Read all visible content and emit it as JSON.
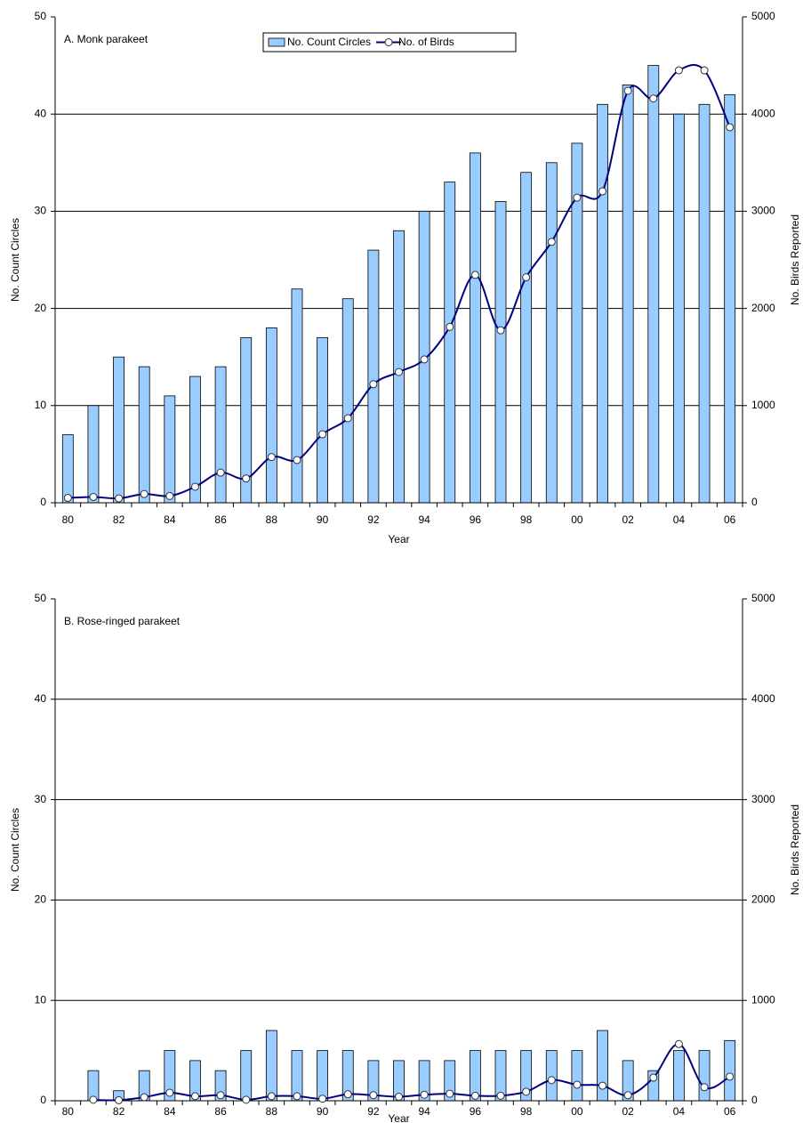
{
  "chart_data": [
    {
      "type": "combo",
      "title": "A. Monk parakeet",
      "x_label": "Year",
      "y_label": "No. Count Circles",
      "y2_label": "No. Birds Reported",
      "categories": [
        "80",
        null,
        "82",
        null,
        "84",
        null,
        "86",
        null,
        "88",
        null,
        "90",
        null,
        "92",
        null,
        "94",
        null,
        "96",
        null,
        "98",
        null,
        "00",
        null,
        "02",
        null,
        "04",
        null,
        "06"
      ],
      "ylim": [
        0,
        50
      ],
      "yticks": [
        0,
        10,
        20,
        30,
        40,
        50
      ],
      "y2lim": [
        0,
        5000
      ],
      "y2ticks": [
        0,
        1000,
        2000,
        3000,
        4000,
        5000
      ],
      "grid": true,
      "legend": "top-center",
      "series": [
        {
          "name": "No. Count Circles",
          "type": "bar",
          "color": "#99ccff",
          "values": [
            7,
            10,
            15,
            14,
            11,
            13,
            14,
            17,
            18,
            22,
            17,
            21,
            26,
            28,
            30,
            33,
            36,
            31,
            34,
            35,
            37,
            41,
            43,
            45,
            40,
            41,
            42
          ]
        },
        {
          "name": "No. of Birds",
          "type": "line",
          "axis": "y2",
          "color": "#000080",
          "values": [
            50,
            60,
            45,
            90,
            70,
            165,
            310,
            250,
            470,
            440,
            705,
            870,
            1220,
            1345,
            1475,
            1810,
            2345,
            1775,
            2320,
            2685,
            3140,
            3205,
            4240,
            4160,
            4450,
            4450,
            3865
          ]
        }
      ]
    },
    {
      "type": "combo",
      "title": "B.  Rose-ringed parakeet",
      "x_label": "Year",
      "y_label": "No. Count Circles",
      "y2_label": "No. Birds Reported",
      "categories": [
        "80",
        null,
        "82",
        null,
        "84",
        null,
        "86",
        null,
        "88",
        null,
        "90",
        null,
        "92",
        null,
        "94",
        null,
        "96",
        null,
        "98",
        null,
        "00",
        null,
        "02",
        null,
        "04",
        null,
        "06"
      ],
      "ylim": [
        0,
        50
      ],
      "yticks": [
        0,
        10,
        20,
        30,
        40,
        50
      ],
      "y2lim": [
        0,
        5000
      ],
      "y2ticks": [
        0,
        1000,
        2000,
        3000,
        4000,
        5000
      ],
      "grid": true,
      "series": [
        {
          "type": "bar",
          "color": "#99ccff",
          "values": [
            0,
            3,
            1,
            3,
            5,
            4,
            3,
            5,
            7,
            5,
            5,
            5,
            4,
            4,
            4,
            4,
            5,
            5,
            5,
            5,
            5,
            7,
            4,
            3,
            5,
            5,
            6
          ]
        },
        {
          "type": "line",
          "axis": "y2",
          "color": "#000080",
          "values": [
            null,
            10,
            5,
            35,
            80,
            45,
            55,
            10,
            45,
            45,
            20,
            65,
            55,
            40,
            60,
            70,
            50,
            50,
            90,
            205,
            160,
            150,
            55,
            230,
            565,
            135,
            240
          ]
        }
      ]
    }
  ]
}
